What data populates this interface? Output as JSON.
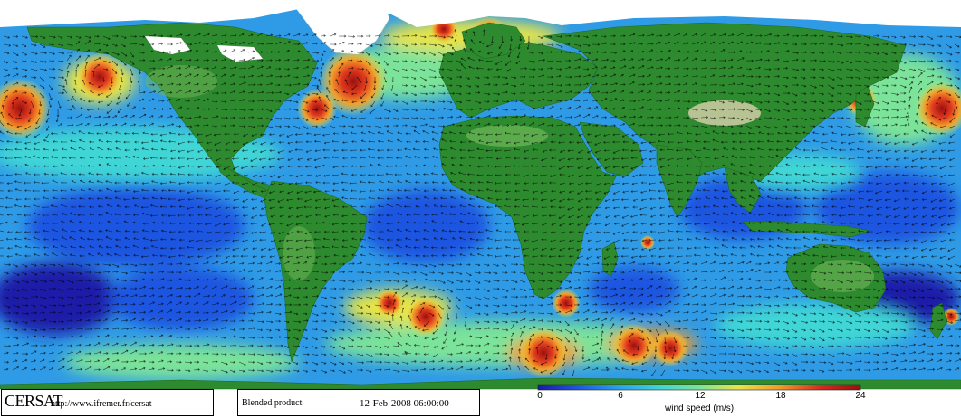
{
  "header": {
    "organization": "CERSAT",
    "url": "http://www.ifremer.fr/cersat",
    "product": "Blended product",
    "datetime": "12-Feb-2008 06:00:00"
  },
  "legend": {
    "title": "wind speed (m/s)",
    "ticks": [
      "0",
      "6",
      "12",
      "18",
      "24"
    ],
    "tick_values": [
      0,
      6,
      12,
      18,
      24
    ],
    "range": [
      0,
      24
    ],
    "colors": [
      "#1a1aa8",
      "#1f55e0",
      "#2aa0f0",
      "#3fd6d6",
      "#7be39a",
      "#e6e44a",
      "#f29a2a",
      "#d8281e",
      "#9a1010"
    ]
  },
  "palette": {
    "ocean": "#2f9be6",
    "land": "#2e8a2e",
    "land_light": "#6fb85a",
    "desert": "#c8c9a0",
    "ice": "#ffffff",
    "arrow": "#000000"
  }
}
